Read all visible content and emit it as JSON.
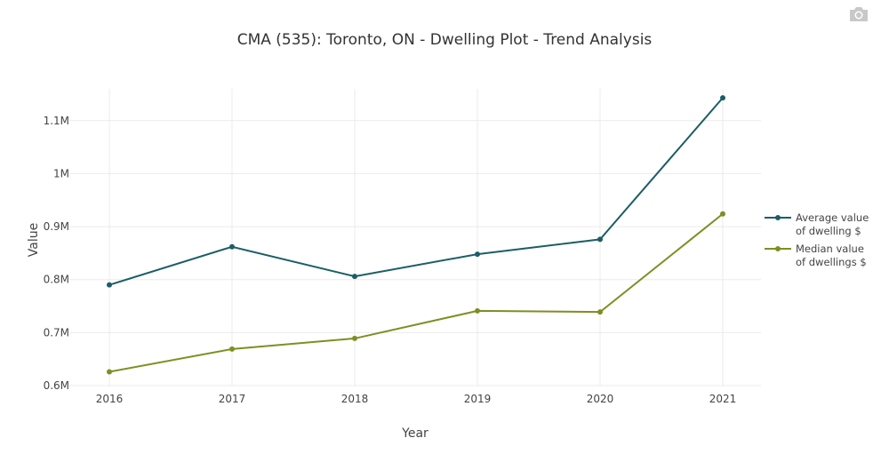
{
  "chart_data": {
    "type": "line",
    "title": "CMA (535): Toronto, ON - Dwelling Plot - Trend Analysis",
    "xlabel": "Year",
    "ylabel": "Value",
    "categories": [
      "2016",
      "2017",
      "2018",
      "2019",
      "2020",
      "2021"
    ],
    "ylim": [
      600000,
      1160000
    ],
    "yticks": [
      600000,
      700000,
      800000,
      900000,
      1000000,
      1100000
    ],
    "ytick_labels": [
      "0.6M",
      "0.7M",
      "0.8M",
      "0.9M",
      "1M",
      "1.1M"
    ],
    "grid": true,
    "legend_position": "right",
    "series": [
      {
        "name": "Average value of dwelling $",
        "legend_lines": [
          "Average value",
          "of dwelling $"
        ],
        "color": "#1b5e66",
        "values": [
          790000,
          862000,
          806000,
          848000,
          876000,
          1143000
        ]
      },
      {
        "name": "Median value of dwellings $",
        "legend_lines": [
          "Median value",
          "of dwellings $"
        ],
        "color": "#7f8e22",
        "values": [
          626000,
          669000,
          689000,
          741000,
          739000,
          924000
        ]
      }
    ]
  },
  "toolbar": {
    "camera_icon": "camera-icon"
  }
}
